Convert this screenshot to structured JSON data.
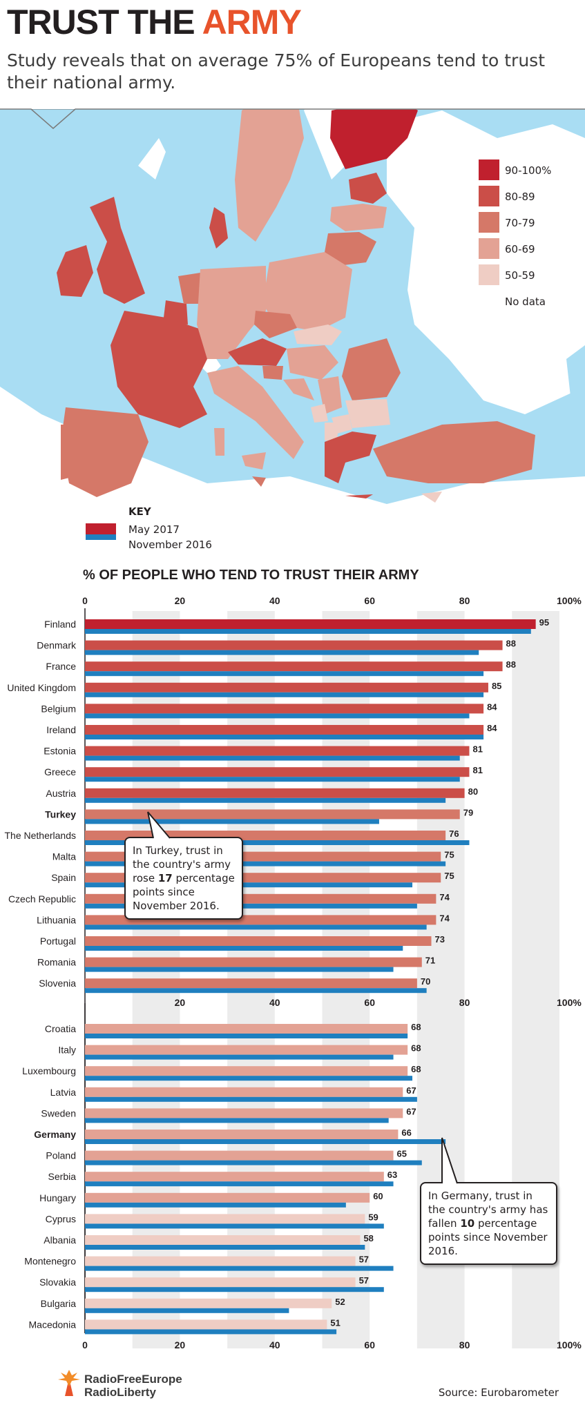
{
  "header": {
    "title_part1": "TRUST THE ",
    "title_part2": "ARMY",
    "subtitle": "Study reveals that on average 75% of Europeans tend to trust their national army."
  },
  "legend": {
    "items": [
      {
        "label": "90-100%",
        "color": "#c0202e"
      },
      {
        "label": "80-89",
        "color": "#cb4e48"
      },
      {
        "label": "70-79",
        "color": "#d57868"
      },
      {
        "label": "60-69",
        "color": "#e3a294"
      },
      {
        "label": "50-59",
        "color": "#efcdc4"
      },
      {
        "label": "No data",
        "color": "#ffffff"
      }
    ]
  },
  "key": {
    "title": "KEY",
    "may_label": "May 2017",
    "nov_label": "November  2016"
  },
  "colors": {
    "may_2017": "#c0202e",
    "november_2016": "#1f7fbf",
    "sea": "#a9ddf3",
    "no_data_land": "#ffffff",
    "grid_band": "#ececec"
  },
  "chart_data": {
    "type": "bar",
    "orientation": "horizontal",
    "title": "% OF PEOPLE WHO TEND TO TRUST THEIR ARMY",
    "xlim": [
      0,
      100
    ],
    "ticks": [
      "0",
      "20",
      "40",
      "60",
      "80",
      "100%"
    ],
    "tick_values": [
      0,
      20,
      40,
      60,
      80,
      100
    ],
    "series_names": [
      "May 2017",
      "November  2016"
    ],
    "bold_categories": [
      "Turkey",
      "Germany"
    ],
    "groups": [
      {
        "categories": [
          "Finland",
          "Denmark",
          "France",
          "United Kingdom",
          "Belgium",
          "Ireland",
          "Estonia",
          "Greece",
          "Austria",
          "Turkey",
          "The Netherlands",
          "Malta",
          "Spain",
          "Czech Republic",
          "Lithuania",
          "Portugal",
          "Romania",
          "Slovenia"
        ],
        "may_2017": [
          95,
          88,
          88,
          85,
          84,
          84,
          81,
          81,
          80,
          79,
          76,
          75,
          75,
          74,
          74,
          73,
          71,
          70
        ],
        "november_2016": [
          94,
          83,
          84,
          84,
          81,
          84,
          79,
          79,
          76,
          62,
          81,
          76,
          69,
          70,
          72,
          67,
          65,
          72
        ]
      },
      {
        "categories": [
          "Croatia",
          "Italy",
          "Luxembourg",
          "Latvia",
          "Sweden",
          "Germany",
          "Poland",
          "Serbia",
          "Hungary",
          "Cyprus",
          "Albania",
          "Montenegro",
          "Slovakia",
          "Bulgaria",
          "Macedonia"
        ],
        "may_2017": [
          68,
          68,
          68,
          67,
          67,
          66,
          65,
          63,
          60,
          59,
          58,
          57,
          57,
          52,
          51
        ],
        "november_2016": [
          68,
          65,
          69,
          70,
          64,
          76,
          71,
          65,
          55,
          63,
          59,
          65,
          63,
          43,
          53
        ]
      }
    ]
  },
  "callouts": {
    "turkey": {
      "pre": "In Turkey, trust in the country's army rose ",
      "num": "17",
      "post": " percentage points since November 2016."
    },
    "germany": {
      "pre": "In Germany, trust in the country's army has fallen ",
      "num": "10",
      "post": " percentage points since November 2016."
    }
  },
  "footer": {
    "logo_line1": "RadioFreeEurope",
    "logo_line2": "RadioLiberty",
    "source": "Source: Eurobarometer"
  }
}
